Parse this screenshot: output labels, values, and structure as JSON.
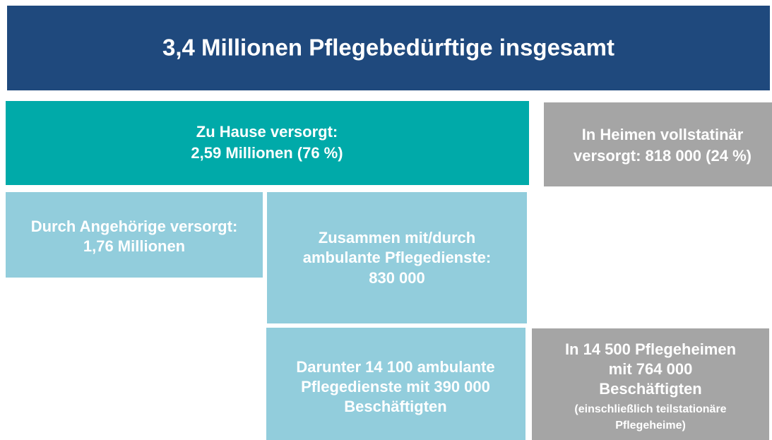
{
  "header": {
    "title": "3,4 Millionen Pflegebedürftige  insgesamt"
  },
  "nodes": [
    {
      "lines": [
        "Zu Hause versorgt:",
        "2,59 Millionen  (76 %)"
      ]
    },
    {
      "lines": [
        "In Heimen vollstatinär",
        "versorgt: 818 000 (24 %)"
      ]
    },
    {
      "lines": [
        "Durch Angehörige versorgt:",
        "1,76 Millionen"
      ]
    },
    {
      "lines": [
        "Zusammen mit/durch",
        "ambulante Pflegedienste:",
        "830 000"
      ]
    },
    {
      "lines": [
        "Darunter 14 100 ambulante",
        "Pflegedienste mit 390 000",
        "Beschäftigten"
      ]
    },
    {
      "lines": [
        "In 14 500 Pflegeheimen",
        "mit 764 000",
        "Beschäftigten"
      ],
      "note": [
        "(einschließlich  teilstationäre",
        "Pflegeheime)"
      ]
    }
  ]
}
